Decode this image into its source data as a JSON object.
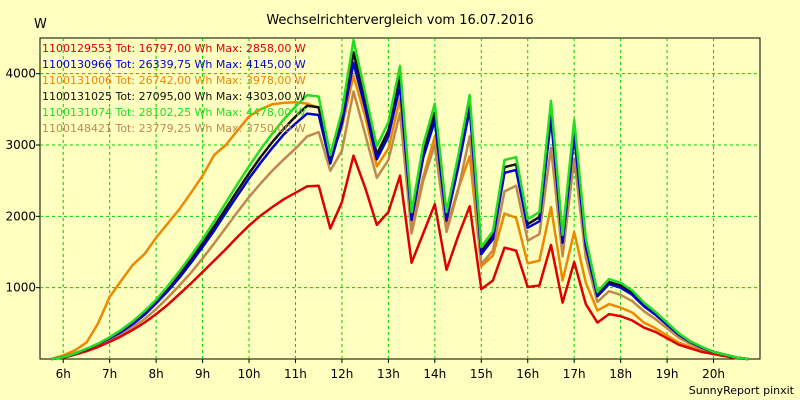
{
  "chart_data": {
    "type": "line",
    "title": "Wechselrichtervergleich vom 16.07.2016",
    "ylabel": "W",
    "xlabel": "",
    "credit": "SunnyReport pinxit",
    "ylim": [
      0,
      4500
    ],
    "xlim": [
      5.5,
      21.0
    ],
    "yticks": [
      1000,
      2000,
      3000,
      4000
    ],
    "xticks": [
      {
        "v": 6,
        "label": "6h"
      },
      {
        "v": 7,
        "label": "7h"
      },
      {
        "v": 8,
        "label": "8h"
      },
      {
        "v": 9,
        "label": "9h"
      },
      {
        "v": 10,
        "label": "10h"
      },
      {
        "v": 11,
        "label": "11h"
      },
      {
        "v": 12,
        "label": "12h"
      },
      {
        "v": 13,
        "label": "13h"
      },
      {
        "v": 14,
        "label": "14h"
      },
      {
        "v": 15,
        "label": "15h"
      },
      {
        "v": 16,
        "label": "16h"
      },
      {
        "v": 17,
        "label": "17h"
      },
      {
        "v": 18,
        "label": "18h"
      },
      {
        "v": 19,
        "label": "19h"
      },
      {
        "v": 20,
        "label": "20h"
      }
    ],
    "x": [
      5.75,
      6.0,
      6.25,
      6.5,
      6.75,
      7.0,
      7.25,
      7.5,
      7.75,
      8.0,
      8.25,
      8.5,
      8.75,
      9.0,
      9.25,
      9.5,
      9.75,
      10.0,
      10.25,
      10.5,
      10.75,
      11.0,
      11.25,
      11.5,
      11.75,
      12.0,
      12.25,
      12.5,
      12.75,
      13.0,
      13.25,
      13.5,
      13.75,
      14.0,
      14.25,
      14.5,
      14.75,
      15.0,
      15.25,
      15.5,
      15.75,
      16.0,
      16.25,
      16.5,
      16.75,
      17.0,
      17.25,
      17.5,
      17.75,
      18.0,
      18.25,
      18.5,
      18.75,
      19.0,
      19.25,
      19.5,
      19.75,
      20.0,
      20.25,
      20.5,
      20.75
    ],
    "series": [
      {
        "name": "1100129553 Tot: 16797,00 Wh Max: 2858,00 W",
        "color": "#dd0000",
        "values": [
          0,
          20,
          60,
          110,
          170,
          240,
          320,
          410,
          510,
          630,
          760,
          910,
          1060,
          1220,
          1380,
          1540,
          1710,
          1870,
          2010,
          2130,
          2240,
          2330,
          2420,
          2430,
          1830,
          2200,
          2850,
          2400,
          1880,
          2060,
          2570,
          1350,
          1760,
          2170,
          1250,
          1720,
          2140,
          980,
          1100,
          1560,
          1520,
          1010,
          1030,
          1600,
          790,
          1360,
          770,
          510,
          630,
          600,
          540,
          440,
          380,
          290,
          200,
          150,
          100,
          70,
          40,
          10,
          0
        ]
      },
      {
        "name": "1100130966 Tot: 26339,75 Wh Max: 4145,00 W",
        "color": "#0000cc",
        "values": [
          0,
          25,
          75,
          140,
          210,
          290,
          380,
          490,
          620,
          780,
          950,
          1140,
          1350,
          1570,
          1800,
          2050,
          2290,
          2530,
          2750,
          2960,
          3150,
          3300,
          3440,
          3420,
          2740,
          3300,
          4150,
          3520,
          2800,
          3120,
          3830,
          1950,
          2820,
          3340,
          1940,
          2680,
          3500,
          1470,
          1680,
          2610,
          2650,
          1840,
          1930,
          3370,
          1630,
          3130,
          1580,
          880,
          1050,
          1000,
          900,
          740,
          620,
          480,
          340,
          240,
          160,
          100,
          60,
          20,
          0
        ]
      },
      {
        "name": "1100131006 Tot: 26742,00 Wh Max: 3978,00 W",
        "color": "#ee8800",
        "values": [
          0,
          50,
          120,
          230,
          500,
          870,
          1100,
          1320,
          1470,
          1700,
          1900,
          2100,
          2330,
          2570,
          2860,
          3000,
          3200,
          3400,
          3500,
          3570,
          3590,
          3600,
          3580,
          3520,
          2810,
          3250,
          3970,
          3400,
          2700,
          2950,
          3650,
          1880,
          2550,
          3120,
          1840,
          2380,
          2840,
          1300,
          1450,
          2040,
          1980,
          1340,
          1380,
          2130,
          1100,
          1780,
          1070,
          680,
          770,
          720,
          650,
          510,
          430,
          330,
          230,
          170,
          110,
          70,
          40,
          10,
          0
        ]
      },
      {
        "name": "1100131025 Tot: 27095,00 Wh Max: 4303,00 W",
        "color": "#111111",
        "values": [
          0,
          25,
          75,
          140,
          210,
          300,
          400,
          510,
          640,
          800,
          980,
          1180,
          1390,
          1620,
          1860,
          2110,
          2360,
          2600,
          2830,
          3040,
          3230,
          3400,
          3550,
          3530,
          2780,
          3340,
          4300,
          3600,
          2870,
          3200,
          3960,
          2000,
          2890,
          3450,
          1990,
          2740,
          3560,
          1510,
          1730,
          2690,
          2730,
          1890,
          1990,
          3480,
          1680,
          3230,
          1630,
          900,
          1080,
          1030,
          930,
          760,
          640,
          490,
          350,
          240,
          160,
          100,
          60,
          20,
          0
        ]
      },
      {
        "name": "1100131074 Tot: 28102,25 Wh Max: 4478,00 W",
        "color": "#22dd22",
        "values": [
          0,
          25,
          75,
          145,
          215,
          305,
          410,
          530,
          670,
          830,
          1020,
          1230,
          1450,
          1680,
          1930,
          2190,
          2450,
          2700,
          2940,
          3160,
          3360,
          3540,
          3700,
          3680,
          2860,
          3470,
          4470,
          3730,
          2980,
          3320,
          4110,
          2060,
          3000,
          3580,
          2060,
          2840,
          3700,
          1570,
          1790,
          2790,
          2830,
          1960,
          2060,
          3620,
          1740,
          3350,
          1690,
          940,
          1120,
          1070,
          960,
          790,
          660,
          510,
          360,
          250,
          170,
          100,
          60,
          20,
          0
        ]
      },
      {
        "name": "1100148421 Tot: 23779,25 Wh Max: 3750,00 W",
        "color": "#c08850",
        "values": [
          0,
          22,
          65,
          125,
          185,
          265,
          350,
          450,
          560,
          700,
          860,
          1030,
          1210,
          1410,
          1620,
          1840,
          2060,
          2270,
          2460,
          2640,
          2800,
          2950,
          3120,
          3180,
          2640,
          2920,
          3750,
          3150,
          2540,
          2790,
          3450,
          1760,
          2500,
          3000,
          1780,
          2360,
          3120,
          1330,
          1520,
          2350,
          2430,
          1660,
          1750,
          2960,
          1440,
          2810,
          1420,
          800,
          950,
          900,
          810,
          670,
          560,
          430,
          300,
          210,
          140,
          90,
          50,
          20,
          0
        ]
      }
    ]
  }
}
